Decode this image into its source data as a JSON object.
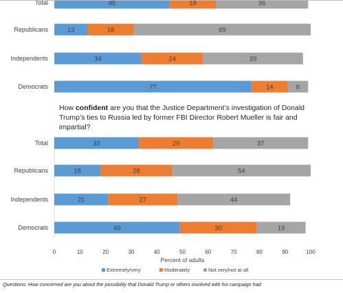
{
  "colors": {
    "extremely_very": "#5B9BD5",
    "moderately": "#ED7D31",
    "not_very": "#A5A5A5",
    "bar_label": "#404040",
    "category_label": "#404040"
  },
  "question2": {
    "before": "How ",
    "bold": "confident",
    "after": " are you that the Justice Department’s investigation of Donald Trump’s ties to Russia led by former FBI Director Robert Mueller is fair and impartial?"
  },
  "footer": "Questions: How concerned are you about the possibility that Donald Trump or others involved with his campaign had",
  "chart_data": {
    "type": "bar",
    "orientation": "horizontal",
    "stacked": true,
    "categories": [
      "Total",
      "Republicans",
      "Independents",
      "Democrats",
      "Total",
      "Republicans",
      "Independents",
      "Democrats"
    ],
    "series": [
      {
        "name": "Extremely/very",
        "values": [
          45,
          13,
          34,
          77,
          33,
          18,
          21,
          49
        ]
      },
      {
        "name": "Moderately",
        "values": [
          18,
          18,
          24,
          14,
          29,
          28,
          27,
          30
        ]
      },
      {
        "name": "Not very/not at all",
        "values": [
          36,
          69,
          39,
          8,
          37,
          54,
          44,
          19
        ]
      }
    ],
    "xlim": [
      0,
      100
    ],
    "xticks": [
      0,
      10,
      20,
      30,
      40,
      50,
      60,
      70,
      80,
      90,
      100
    ],
    "xlabel": "Percent of adults",
    "ylabel": "",
    "legend_position": "bottom",
    "grid": false
  }
}
